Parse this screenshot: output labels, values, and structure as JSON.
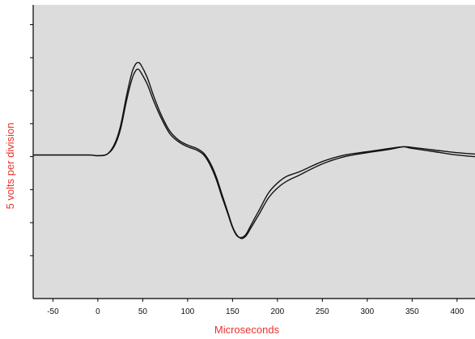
{
  "chart_data": {
    "type": "line",
    "title": "",
    "xlabel": "Microseconds",
    "ylabel": "5 volts per division",
    "xlim": [
      -72,
      420
    ],
    "ylim": [
      -4.3,
      4.6
    ],
    "x_ticks": [
      -50,
      0,
      50,
      100,
      150,
      200,
      250,
      300,
      350,
      400
    ],
    "x_tick_labels": [
      "-50",
      "0",
      "50",
      "100",
      "150",
      "200",
      "250",
      "300",
      "350",
      "400"
    ],
    "y_divisions": [
      -3,
      -2,
      -1,
      0,
      1,
      2,
      3,
      4
    ],
    "grid": false,
    "colors": {
      "plot_background": "#dcdcdc",
      "axis_label_color": "#e8322a",
      "trace_color": "#111111"
    },
    "series": [
      {
        "x": [
          -72,
          -40,
          -10,
          0,
          10,
          18,
          25,
          32,
          38,
          42,
          45,
          48,
          55,
          62,
          70,
          80,
          90,
          100,
          110,
          118,
          125,
          132,
          138,
          145,
          150,
          155,
          160,
          165,
          170,
          180,
          190,
          200,
          210,
          225,
          250,
          275,
          300,
          325,
          340,
          350,
          375,
          400,
          420
        ],
        "y": [
          0.05,
          0.05,
          0.05,
          0.03,
          0.07,
          0.3,
          0.8,
          1.7,
          2.35,
          2.6,
          2.65,
          2.55,
          2.2,
          1.7,
          1.2,
          0.7,
          0.45,
          0.3,
          0.2,
          0.05,
          -0.25,
          -0.7,
          -1.2,
          -1.75,
          -2.15,
          -2.4,
          -2.45,
          -2.35,
          -2.1,
          -1.6,
          -1.1,
          -0.8,
          -0.6,
          -0.45,
          -0.15,
          0.05,
          0.15,
          0.25,
          0.3,
          0.25,
          0.15,
          0.05,
          0.0
        ]
      },
      {
        "x": [
          -72,
          -40,
          -10,
          0,
          10,
          18,
          25,
          32,
          38,
          42,
          45,
          48,
          55,
          62,
          70,
          80,
          90,
          100,
          110,
          118,
          125,
          132,
          138,
          145,
          150,
          155,
          160,
          165,
          170,
          180,
          190,
          200,
          210,
          225,
          250,
          275,
          300,
          325,
          340,
          350,
          375,
          400,
          420
        ],
        "y": [
          0.05,
          0.05,
          0.05,
          0.03,
          0.07,
          0.35,
          0.9,
          1.85,
          2.55,
          2.8,
          2.85,
          2.78,
          2.4,
          1.85,
          1.3,
          0.78,
          0.5,
          0.35,
          0.25,
          0.1,
          -0.18,
          -0.62,
          -1.12,
          -1.7,
          -2.12,
          -2.38,
          -2.48,
          -2.4,
          -2.18,
          -1.72,
          -1.25,
          -0.95,
          -0.75,
          -0.55,
          -0.22,
          0.0,
          0.12,
          0.22,
          0.3,
          0.28,
          0.2,
          0.12,
          0.08
        ]
      }
    ]
  }
}
